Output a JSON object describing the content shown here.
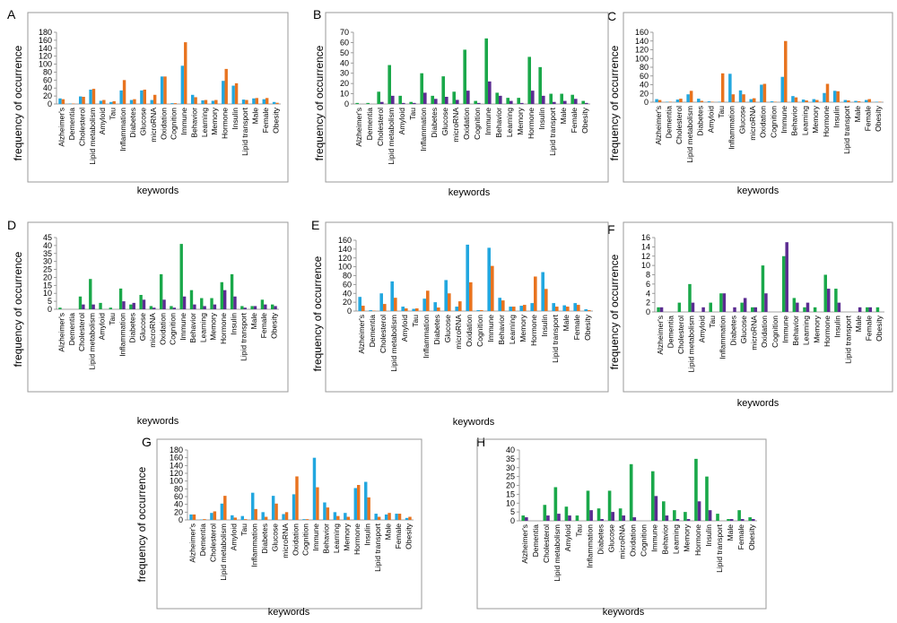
{
  "figure": {
    "colors": {
      "blue": "#22a7df",
      "orange": "#e8731f",
      "green": "#1aa84a",
      "purple": "#5b2c91",
      "frame": "#9a9a9a",
      "grid": "#d9d9d9"
    }
  },
  "chart_data": [
    {
      "panel": "A",
      "type": "bar",
      "xlabel": "keywords",
      "ylabel": "frequency of occurrence",
      "ylim": [
        0,
        180
      ],
      "ytick_step": 20,
      "grid": false,
      "categories": [
        "Alzheimer's",
        "Dementia",
        "Cholesterol",
        "Lipid metabolism",
        "Amyloid",
        "Tau",
        "Inflammation",
        "Diabetes",
        "Glucose",
        "microRNA",
        "Oxidation",
        "Cognition",
        "Immune",
        "Behavior",
        "Learning",
        "Memory",
        "Hormone",
        "Insulin",
        "Lipid transport",
        "Male",
        "Female",
        "Obesity"
      ],
      "series": [
        {
          "color": "blue",
          "values": [
            14,
            1,
            19,
            36,
            8,
            5,
            34,
            10,
            34,
            10,
            69,
            2,
            96,
            23,
            9,
            8,
            58,
            46,
            11,
            14,
            12,
            5
          ]
        },
        {
          "color": "orange",
          "values": [
            12,
            1,
            18,
            38,
            10,
            7,
            60,
            12,
            36,
            23,
            69,
            2,
            155,
            17,
            10,
            10,
            88,
            52,
            10,
            15,
            15,
            3
          ]
        }
      ]
    },
    {
      "panel": "B",
      "type": "bar",
      "xlabel": "keywords",
      "ylabel": "frequency of occurrence",
      "ylim": [
        0,
        70
      ],
      "ytick_step": 10,
      "grid": false,
      "categories": [
        "Alzheimer's",
        "Dementia",
        "Cholesterol",
        "Lipid metabolism",
        "Amyloid",
        "Tau",
        "Inflammation",
        "Diabetes",
        "Glucose",
        "microRNA",
        "Oxidation",
        "Cognition",
        "Immune",
        "Behavior",
        "Learning",
        "Memory",
        "Hormone",
        "Insulin",
        "Lipid transport",
        "Male",
        "Female",
        "Obesity"
      ],
      "series": [
        {
          "color": "green",
          "values": [
            1,
            1,
            12,
            38,
            8,
            2,
            30,
            8,
            27,
            12,
            53,
            3,
            64,
            11,
            6,
            6,
            46,
            36,
            10,
            10,
            9,
            3
          ]
        },
        {
          "color": "purple",
          "values": [
            0,
            0,
            2,
            8,
            1,
            1,
            11,
            5,
            7,
            4,
            13,
            1,
            22,
            8,
            3,
            1,
            13,
            8,
            2,
            3,
            5,
            1
          ]
        }
      ]
    },
    {
      "panel": "C",
      "type": "bar",
      "xlabel": "keywords",
      "ylabel": "frequency of occurrence",
      "ylim": [
        0,
        160
      ],
      "ytick_step": 20,
      "grid": false,
      "categories": [
        "Alzheimer's",
        "Dementia",
        "Cholesterol",
        "Lipid metabolism",
        "Diabetes",
        "Amyloid",
        "Tau",
        "Inflammation",
        "Glucose",
        "microRNA",
        "Oxidation",
        "Cognition",
        "Immune",
        "Behavior",
        "Learning",
        "Memory",
        "Hormone",
        "Insulin",
        "Lipid transport",
        "Male",
        "Female",
        "Obesity"
      ],
      "series": [
        {
          "color": "blue",
          "values": [
            7,
            1,
            6,
            18,
            8,
            2,
            1,
            65,
            27,
            7,
            40,
            2,
            58,
            14,
            6,
            7,
            21,
            26,
            5,
            3,
            5,
            1
          ]
        },
        {
          "color": "orange",
          "values": [
            5,
            1,
            8,
            26,
            3,
            1,
            66,
            18,
            18,
            9,
            42,
            1,
            140,
            11,
            4,
            5,
            42,
            25,
            4,
            2,
            7,
            1
          ]
        }
      ]
    },
    {
      "panel": "D",
      "type": "bar",
      "xlabel": "keywords",
      "ylabel": "frequency of occurrence",
      "ylim": [
        0,
        45
      ],
      "ytick_step": 5,
      "grid": false,
      "categories": [
        "Alzheimer's",
        "Dementia",
        "Cholesterol",
        "Lipid metabolism",
        "Amyloid",
        "Tau",
        "Inflammation",
        "Diabetes",
        "Glucose",
        "microRNA",
        "Oxidation",
        "Cognition",
        "Immune",
        "Behavior",
        "Learning",
        "Memory",
        "Hormone",
        "Insulin",
        "Lipid transport",
        "Male",
        "Female",
        "Obesity"
      ],
      "series": [
        {
          "color": "green",
          "values": [
            1,
            0,
            8,
            19,
            4,
            1,
            13,
            3,
            9,
            2,
            22,
            2,
            41,
            12,
            7,
            7,
            17,
            22,
            2,
            2,
            6,
            3
          ]
        },
        {
          "color": "purple",
          "values": [
            0,
            0,
            3,
            3,
            0,
            0,
            5,
            4,
            6,
            1,
            6,
            1,
            8,
            3,
            2,
            3,
            12,
            8,
            1,
            2,
            3,
            2
          ]
        }
      ]
    },
    {
      "panel": "E",
      "type": "bar",
      "xlabel": "keywords",
      "ylabel": "frequency of occurrence",
      "ylim": [
        0,
        160
      ],
      "ytick_step": 20,
      "grid": false,
      "categories": [
        "Alzheimer's",
        "Dementia",
        "Cholesterol",
        "Lipid metabolism",
        "Amyloid",
        "Tau",
        "Inflammation",
        "Diabetes",
        "Glucose",
        "microRNA",
        "Oxidation",
        "Cognition",
        "Immune",
        "Behavior",
        "Learning",
        "Memory",
        "Hormone",
        "Insulin",
        "Lipid transport",
        "Male",
        "Female",
        "Obesity"
      ],
      "series": [
        {
          "color": "blue",
          "values": [
            32,
            2,
            40,
            67,
            10,
            5,
            28,
            20,
            70,
            10,
            150,
            2,
            143,
            30,
            10,
            12,
            18,
            88,
            18,
            13,
            18,
            4
          ]
        },
        {
          "color": "orange",
          "values": [
            12,
            1,
            16,
            30,
            6,
            6,
            46,
            8,
            40,
            22,
            65,
            2,
            102,
            24,
            10,
            14,
            78,
            50,
            10,
            10,
            14,
            2
          ]
        }
      ]
    },
    {
      "panel": "F",
      "type": "bar",
      "xlabel": "keywords",
      "ylabel": "frequency of occurrence",
      "ylim": [
        0,
        16
      ],
      "ytick_step": 2,
      "grid": false,
      "categories": [
        "Alzheimer's",
        "Dementia",
        "Cholesterol",
        "Lipid metabolism",
        "Amyloid",
        "Tau",
        "Inflammation",
        "Diabetes",
        "Glucose",
        "microRNA",
        "Oxidation",
        "Cognition",
        "Immune",
        "Behavior",
        "Learning",
        "Memory",
        "Hormone",
        "Insulin",
        "Lipid transport",
        "Male",
        "Female",
        "Obesity"
      ],
      "series": [
        {
          "color": "green",
          "values": [
            1,
            0,
            2,
            6,
            0,
            2,
            4,
            0,
            2,
            1,
            10,
            0,
            12,
            3,
            1,
            1,
            8,
            5,
            0,
            0,
            1,
            1
          ]
        },
        {
          "color": "purple",
          "values": [
            1,
            0,
            0,
            2,
            1,
            0,
            4,
            1,
            3,
            1,
            4,
            0,
            15,
            2,
            2,
            0,
            5,
            2,
            0,
            1,
            1,
            0
          ]
        }
      ]
    },
    {
      "panel": "G",
      "type": "bar",
      "xlabel": "keywords",
      "ylabel": "frequency of occurrence",
      "ylim": [
        0,
        180
      ],
      "ytick_step": 20,
      "grid": false,
      "categories": [
        "Alzheimer's",
        "Dementia",
        "Cholesterol",
        "Lipid metabolism",
        "Amyloid",
        "Tau",
        "Inflammation",
        "Diabetes",
        "Glucose",
        "microRNA",
        "Oxidation",
        "Cognition",
        "Immune",
        "Behavior",
        "Learning",
        "Memory",
        "Hormone",
        "Insulin",
        "Lipid transport",
        "Male",
        "Female",
        "Obesity"
      ],
      "series": [
        {
          "color": "blue",
          "values": [
            14,
            1,
            18,
            42,
            12,
            10,
            70,
            20,
            62,
            15,
            66,
            2,
            160,
            45,
            20,
            18,
            82,
            98,
            16,
            14,
            16,
            5
          ]
        },
        {
          "color": "orange",
          "values": [
            14,
            2,
            22,
            62,
            6,
            2,
            28,
            8,
            42,
            20,
            112,
            2,
            84,
            32,
            10,
            8,
            90,
            58,
            8,
            18,
            16,
            8
          ]
        }
      ]
    },
    {
      "panel": "H",
      "type": "bar",
      "xlabel": "keywords",
      "ylabel": "",
      "ylim": [
        0,
        40
      ],
      "ytick_step": 5,
      "grid": false,
      "categories": [
        "Alzheimer's",
        "Dementia",
        "Cholesterol",
        "Lipid metabolism",
        "Amyloid",
        "Tau",
        "Inflammation",
        "Diabetes",
        "Glucose",
        "microRNA",
        "Oxidation",
        "Cognition",
        "Immune",
        "Behavior",
        "Learning",
        "Memory",
        "Hormone",
        "Insulin",
        "Lipid transport",
        "Male",
        "Female",
        "Obesity"
      ],
      "series": [
        {
          "color": "green",
          "values": [
            3,
            0,
            9,
            19,
            8,
            3,
            17,
            7,
            17,
            7,
            32,
            0,
            28,
            11,
            6,
            5,
            35,
            25,
            4,
            1,
            6,
            2
          ]
        },
        {
          "color": "purple",
          "values": [
            2,
            0,
            3,
            4,
            3,
            0,
            6,
            1,
            5,
            3,
            2,
            0,
            14,
            3,
            1,
            1,
            11,
            6,
            0,
            1,
            1,
            1
          ]
        }
      ]
    }
  ]
}
